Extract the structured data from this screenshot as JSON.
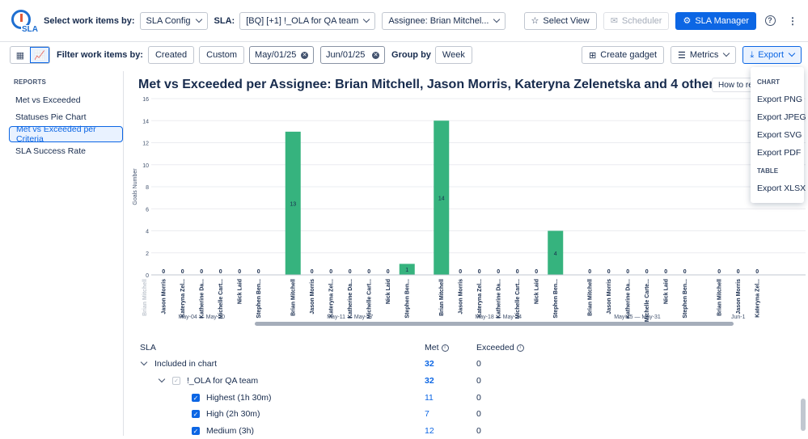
{
  "topbar": {
    "logo_text": "SLA",
    "select_label": "Select work items by:",
    "config_value": "SLA Config",
    "sla_label": "SLA:",
    "sla_value": "[BQ] [+1] !_OLA for QA team",
    "assignee_value": "Assignee: Brian Mitchel...",
    "select_view": "Select View",
    "scheduler": "Scheduler",
    "sla_manager": "SLA Manager"
  },
  "toolbar": {
    "filter_label": "Filter work items by:",
    "created": "Created",
    "custom": "Custom",
    "date_from": "May/01/25",
    "date_to": "Jun/01/25",
    "group_label": "Group by",
    "group_value": "Week",
    "create_gadget": "Create gadget",
    "metrics": "Metrics",
    "export": "Export"
  },
  "sidebar": {
    "heading": "REPORTS",
    "items": [
      {
        "label": "Met vs Exceeded"
      },
      {
        "label": "Statuses Pie Chart"
      },
      {
        "label": "Met vs Exceeded per Criteria"
      },
      {
        "label": "SLA Success Rate"
      }
    ]
  },
  "main": {
    "title": "Met vs Exceeded per Assignee: Brian Mitchell, Jason Morris, Kateryna Zelenetska and 4 others",
    "how_to": "How to rea"
  },
  "chart_data": {
    "type": "bar",
    "ylabel": "Goals Number",
    "ylim": [
      0,
      16
    ],
    "yticks": [
      0,
      2,
      4,
      6,
      8,
      10,
      12,
      14,
      16
    ],
    "color": "#36b37e",
    "groups": [
      {
        "label": "May-04 — May-10",
        "bars": [
          {
            "name": "Brian Mitchell",
            "value": 0,
            "label_shown": false,
            "faded": true
          },
          {
            "name": "Jason Morris",
            "value": 0
          },
          {
            "name": "Kateryna Zel...",
            "value": 0
          },
          {
            "name": "Katherine Da...",
            "value": 0
          },
          {
            "name": "Michelle Cart...",
            "value": 0
          },
          {
            "name": "Nick Laid",
            "value": 0
          },
          {
            "name": "Stephen Ben...",
            "value": 0
          }
        ]
      },
      {
        "label": "May-11 — May-17",
        "bars": [
          {
            "name": "Brian Mitchell",
            "value": 13
          },
          {
            "name": "Jason Morris",
            "value": 0
          },
          {
            "name": "Kateryna Zel...",
            "value": 0
          },
          {
            "name": "Katherine Da...",
            "value": 0
          },
          {
            "name": "Michelle Cart...",
            "value": 0
          },
          {
            "name": "Nick Laid",
            "value": 0
          },
          {
            "name": "Stephen Ben...",
            "value": 1
          }
        ]
      },
      {
        "label": "May-18 — May-24",
        "bars": [
          {
            "name": "Brian Mitchell",
            "value": 14
          },
          {
            "name": "Jason Morris",
            "value": 0
          },
          {
            "name": "Kateryna Zel...",
            "value": 0
          },
          {
            "name": "Katherine Da...",
            "value": 0
          },
          {
            "name": "Michelle Cart...",
            "value": 0
          },
          {
            "name": "Nick Laid",
            "value": 0
          },
          {
            "name": "Stephen Ben...",
            "value": 4
          }
        ]
      },
      {
        "label": "May-25 — May-31",
        "bars": [
          {
            "name": "Brian Mitchell",
            "value": 0
          },
          {
            "name": "Jason Morris",
            "value": 0
          },
          {
            "name": "Katherine Da...",
            "value": 0
          },
          {
            "name": "Michelle Carte...",
            "value": 0
          },
          {
            "name": "Nick Laid",
            "value": 0
          },
          {
            "name": "Stephen Ben...",
            "value": 0
          }
        ]
      },
      {
        "label": "Jun-1",
        "bars": [
          {
            "name": "Brian Mitchell",
            "value": 0
          },
          {
            "name": "Jason Morris",
            "value": 0
          },
          {
            "name": "Kateryna Zel...",
            "value": 0
          }
        ]
      }
    ]
  },
  "table": {
    "col_sla": "SLA",
    "col_met": "Met",
    "col_exceeded": "Exceeded",
    "rows": [
      {
        "label": "Included in chart",
        "met": "32",
        "exceeded": "0"
      },
      {
        "label": "!_OLA for QA team",
        "met": "32",
        "exceeded": "0"
      },
      {
        "label": "Highest (1h 30m)",
        "met": "11",
        "exceeded": "0"
      },
      {
        "label": "High (2h 30m)",
        "met": "7",
        "exceeded": "0"
      },
      {
        "label": "Medium (3h)",
        "met": "12",
        "exceeded": "0"
      }
    ]
  },
  "export_menu": {
    "chart_heading": "CHART",
    "png": "Export PNG",
    "jpeg": "Export JPEG",
    "svg": "Export SVG",
    "pdf": "Export PDF",
    "table_heading": "TABLE",
    "xlsx": "Export XLSX"
  }
}
